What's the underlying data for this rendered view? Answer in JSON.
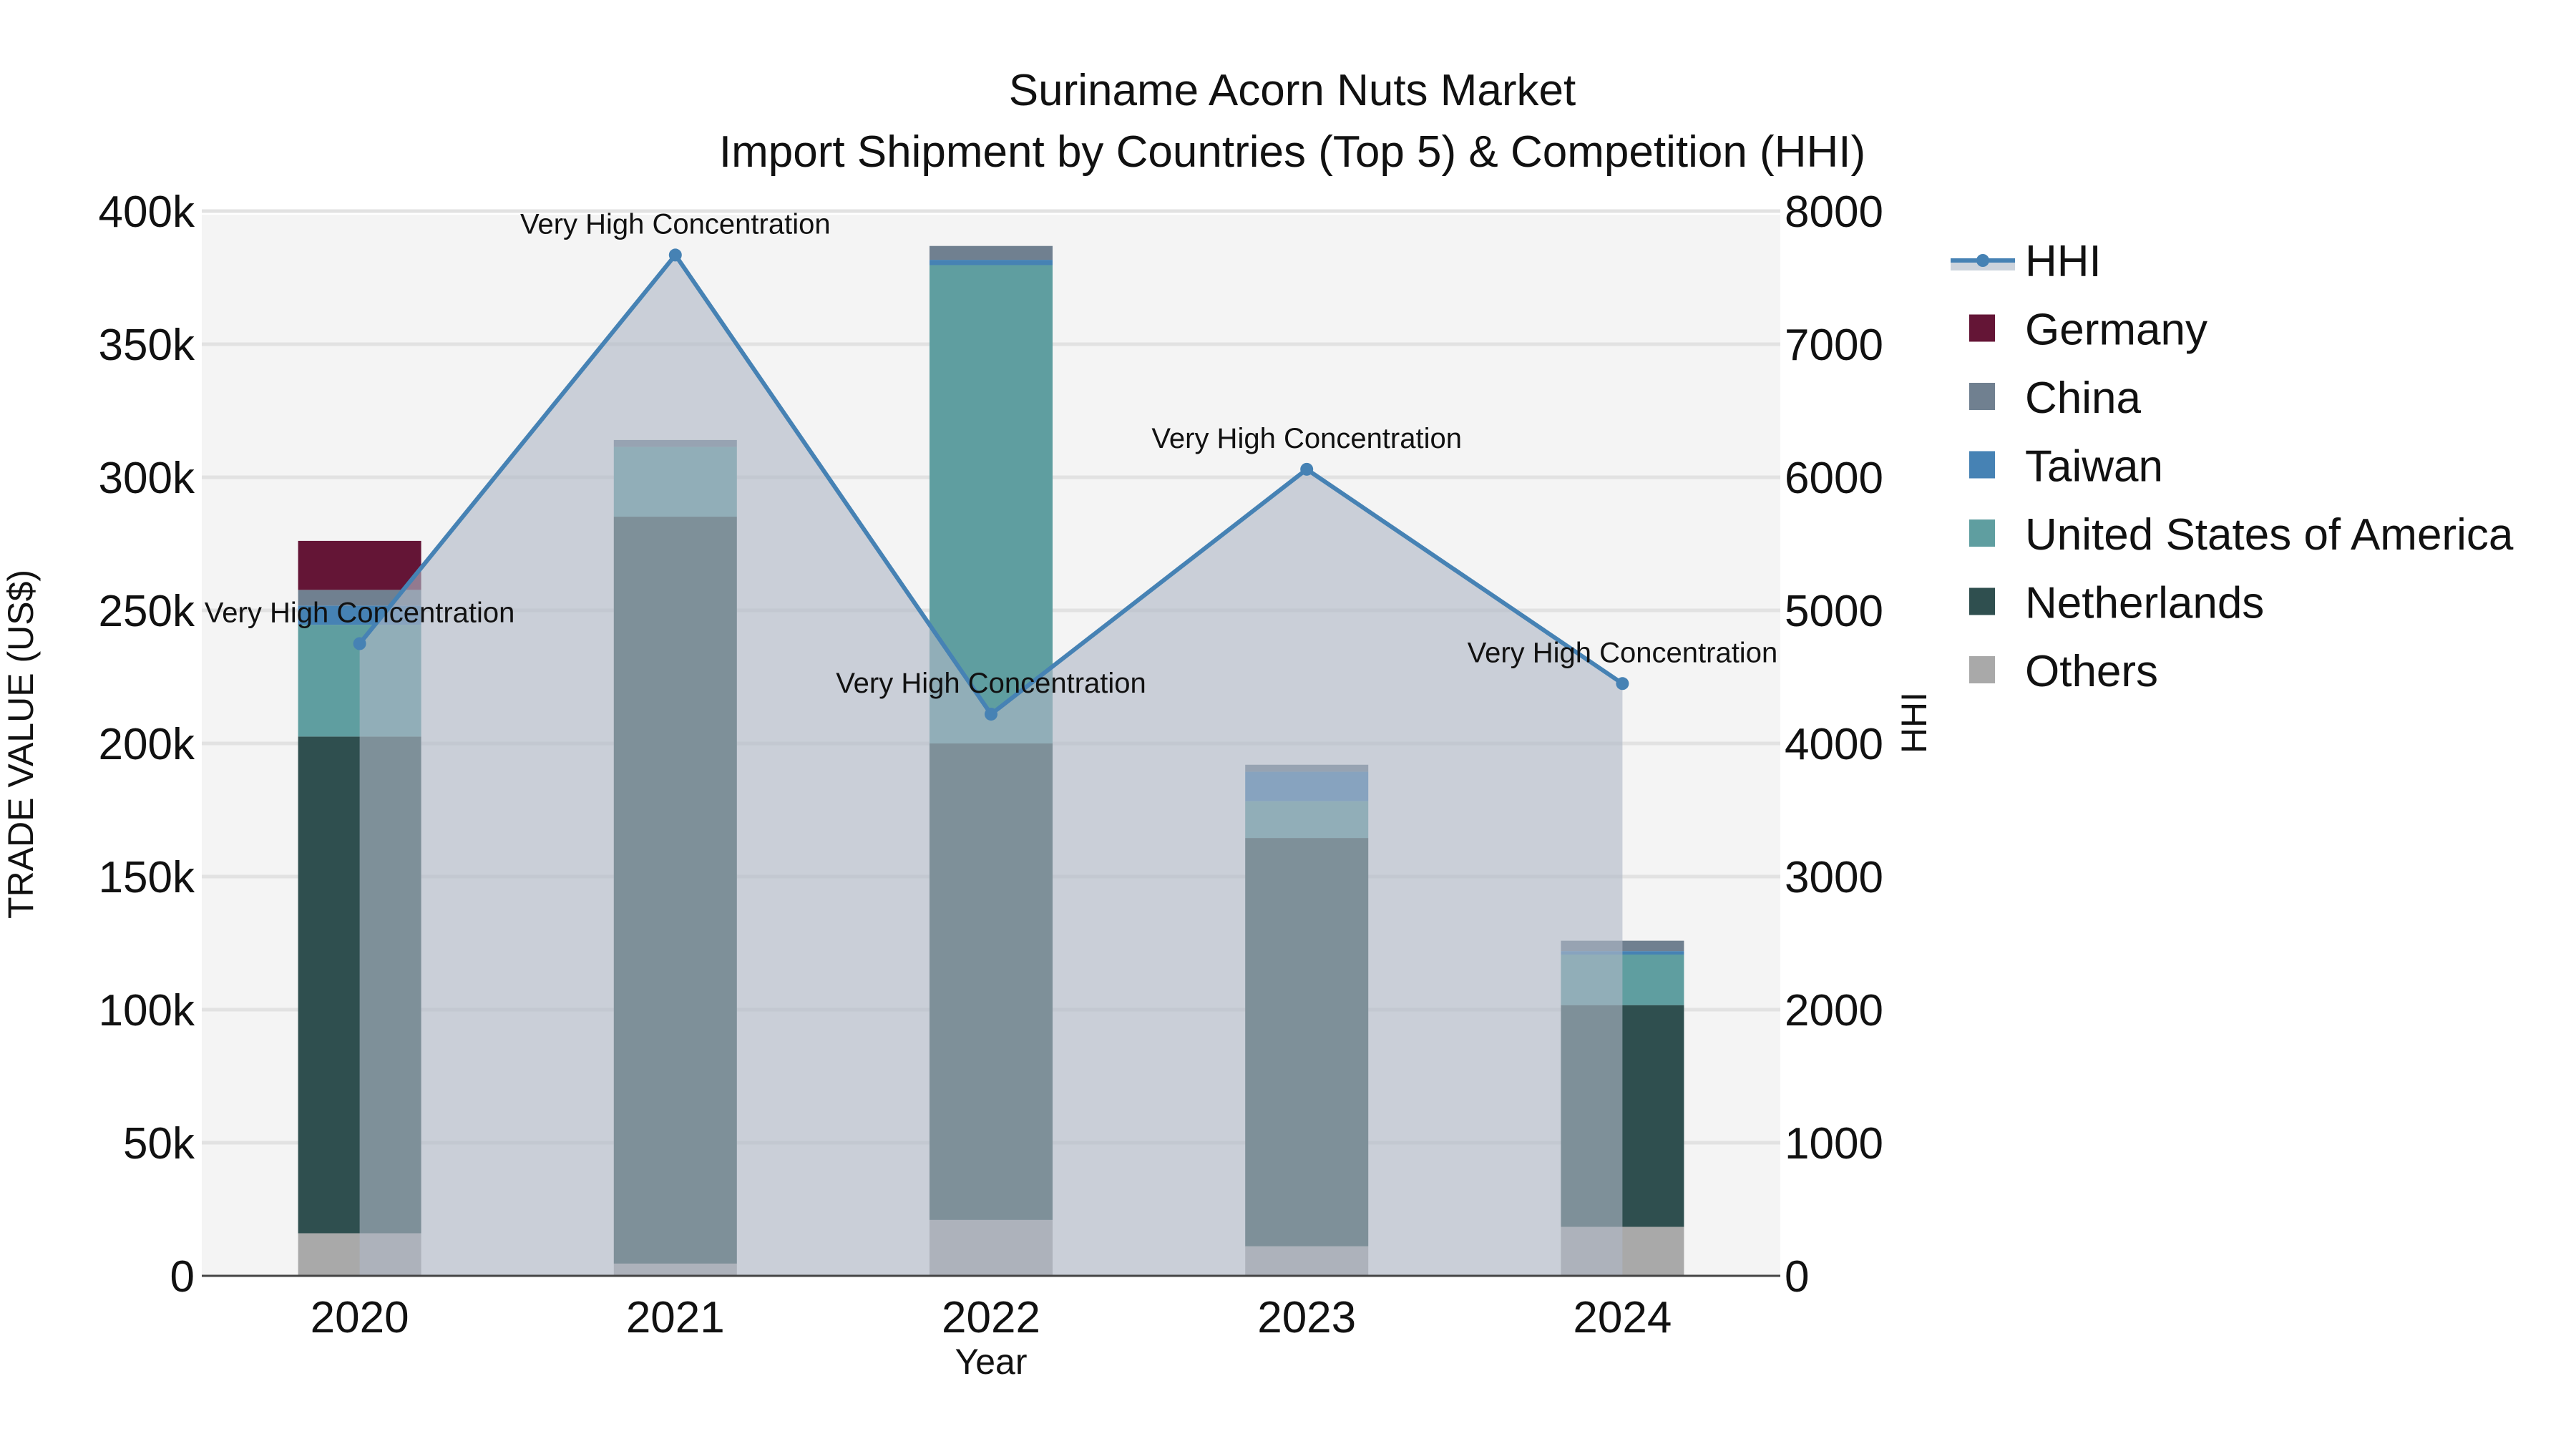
{
  "title": {
    "line1": "Suriname Acorn Nuts Market",
    "line2": "Import Shipment by Countries (Top 5) & Competition (HHI)"
  },
  "axes": {
    "x_title": "Year",
    "y_left_title": "TRADE VALUE (US$)",
    "y_right_title": "HHI",
    "y_left_ticks": [
      "0",
      "50k",
      "100k",
      "150k",
      "200k",
      "250k",
      "300k",
      "350k",
      "400k"
    ],
    "y_right_ticks": [
      "0",
      "1000",
      "2000",
      "3000",
      "4000",
      "5000",
      "6000",
      "7000",
      "8000"
    ],
    "x_ticks": [
      "2020",
      "2021",
      "2022",
      "2023",
      "2024"
    ]
  },
  "legend": [
    {
      "name": "HHI",
      "color": "#4682b4",
      "type": "line"
    },
    {
      "name": "Germany",
      "color": "#641536",
      "type": "box"
    },
    {
      "name": "China",
      "color": "#708090",
      "type": "box"
    },
    {
      "name": "Taiwan",
      "color": "#4682b4",
      "type": "box"
    },
    {
      "name": "United States of America",
      "color": "#5f9ea0",
      "type": "box"
    },
    {
      "name": "Netherlands",
      "color": "#2f4f4f",
      "type": "box"
    },
    {
      "name": "Others",
      "color": "#a9a9a9",
      "type": "box"
    }
  ],
  "annotations": [
    "Very High Concentration",
    "Very High Concentration",
    "Very High Concentration",
    "Very High Concentration",
    "Very High Concentration"
  ],
  "chart_data": {
    "type": "bar",
    "stacked": true,
    "title": "Suriname Acorn Nuts Market — Import Shipment by Countries (Top 5) & Competition (HHI)",
    "xlabel": "Year",
    "ylabel": "TRADE VALUE (US$)",
    "y2label": "HHI",
    "ylim": [
      0,
      400000
    ],
    "y2lim": [
      0,
      8000
    ],
    "categories": [
      "2020",
      "2021",
      "2022",
      "2023",
      "2024"
    ],
    "series": [
      {
        "name": "Others",
        "color": "#a9a9a9",
        "values": [
          16000,
          4600,
          21000,
          11100,
          18400
        ]
      },
      {
        "name": "Netherlands",
        "color": "#2f4f4f",
        "values": [
          186600,
          280600,
          179000,
          153400,
          83300
        ]
      },
      {
        "name": "United States of America",
        "color": "#5f9ea0",
        "values": [
          42000,
          26200,
          179700,
          13800,
          19000
        ]
      },
      {
        "name": "Taiwan",
        "color": "#4682b4",
        "values": [
          7200,
          0,
          2000,
          11100,
          1300
        ]
      },
      {
        "name": "China",
        "color": "#708090",
        "values": [
          5900,
          2600,
          5200,
          2600,
          3900
        ]
      },
      {
        "name": "Germany",
        "color": "#641536",
        "values": [
          18400,
          0,
          0,
          0,
          0
        ]
      }
    ],
    "line_series": {
      "name": "HHI",
      "axis": "right",
      "color": "#4682b4",
      "fill": "tozeroy",
      "values": [
        4750,
        7670,
        4220,
        6060,
        4450
      ],
      "labels": [
        "Very High Concentration",
        "Very High Concentration",
        "Very High Concentration",
        "Very High Concentration",
        "Very High Concentration"
      ]
    },
    "grid": true,
    "legend_position": "right"
  }
}
